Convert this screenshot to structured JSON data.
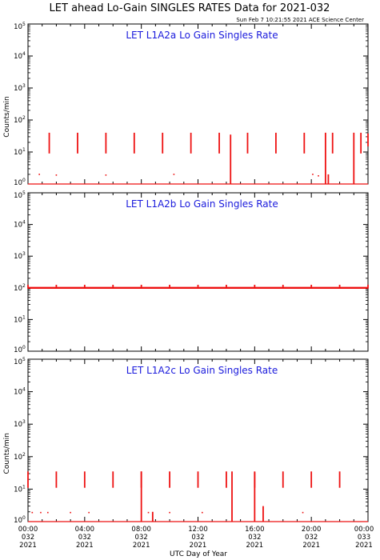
{
  "title": "LET ahead Lo-Gain SINGLES RATES Data for 2021-032",
  "timestamp": "Sun Feb  7 10:21:55 2021 ACE Science Center",
  "xlabel": "UTC Day of Year",
  "ylabel": "Counts/min",
  "colors": {
    "data": "#ee1111",
    "panel_title": "#1a1adc",
    "axes": "#000000"
  },
  "x_ticks": [
    {
      "time": "00:00",
      "doy": "032",
      "year": "2021"
    },
    {
      "time": "04:00",
      "doy": "032",
      "year": "2021"
    },
    {
      "time": "08:00",
      "doy": "032",
      "year": "2021"
    },
    {
      "time": "12:00",
      "doy": "032",
      "year": "2021"
    },
    {
      "time": "16:00",
      "doy": "032",
      "year": "2021"
    },
    {
      "time": "20:00",
      "doy": "032",
      "year": "2021"
    },
    {
      "time": "00:00",
      "doy": "033",
      "year": "2021"
    }
  ],
  "y_ticks": [
    {
      "base": "10",
      "exp": "0"
    },
    {
      "base": "10",
      "exp": "1"
    },
    {
      "base": "10",
      "exp": "2"
    },
    {
      "base": "10",
      "exp": "3"
    },
    {
      "base": "10",
      "exp": "4"
    },
    {
      "base": "10",
      "exp": "5"
    }
  ],
  "chart_data": [
    {
      "type": "line",
      "title": "LET L1A2a Lo Gain Singles Rate",
      "x_units": "UTC hour of day 032",
      "xlim": [
        0,
        24
      ],
      "ylim": [
        1,
        100000
      ],
      "y_scale": "log",
      "baseline": 1,
      "periodic_spikes": {
        "start_hour": 1.5,
        "period_hours": 2.0,
        "count": 12,
        "low": 9,
        "high": 40
      },
      "extra_spikes": [
        {
          "x": 14.3,
          "low": 1,
          "high": 35
        },
        {
          "x": 21.0,
          "low": 1,
          "high": 40
        },
        {
          "x": 21.2,
          "low": 1,
          "high": 2
        },
        {
          "x": 23.0,
          "low": 1,
          "high": 40
        },
        {
          "x": 24.0,
          "low": 15,
          "high": 38
        }
      ],
      "sparse_points": [
        {
          "x": 0.8,
          "y": 2
        },
        {
          "x": 2.0,
          "y": 1.9
        },
        {
          "x": 5.5,
          "y": 1.9
        },
        {
          "x": 10.3,
          "y": 2
        },
        {
          "x": 20.1,
          "y": 2
        },
        {
          "x": 20.5,
          "y": 1.8
        }
      ]
    },
    {
      "type": "line",
      "title": "LET L1A2b Lo Gain Singles Rate",
      "x_units": "UTC hour of day 032",
      "xlim": [
        0,
        24
      ],
      "ylim": [
        1,
        100000
      ],
      "y_scale": "log",
      "baseline": 100,
      "periodic_spikes": {
        "start_hour": 0.0,
        "period_hours": 2.0,
        "count": 13,
        "low": 95,
        "high": 125
      },
      "extra_spikes": [],
      "sparse_points": []
    },
    {
      "type": "line",
      "title": "LET L1A2c Lo Gain Singles Rate",
      "x_units": "UTC hour of day 032",
      "xlim": [
        0,
        24
      ],
      "ylim": [
        1,
        100000
      ],
      "y_scale": "log",
      "baseline": 1,
      "periodic_spikes": {
        "start_hour": 0.0,
        "period_hours": 2.0,
        "count": 12,
        "low": 11,
        "high": 35
      },
      "extra_spikes": [
        {
          "x": 8.0,
          "low": 1,
          "high": 35
        },
        {
          "x": 8.8,
          "low": 1,
          "high": 2
        },
        {
          "x": 14.4,
          "low": 1,
          "high": 35
        },
        {
          "x": 16.0,
          "low": 1,
          "high": 33
        },
        {
          "x": 16.6,
          "low": 1,
          "high": 3
        }
      ],
      "sparse_points": [
        {
          "x": 0.3,
          "y": 1.9
        },
        {
          "x": 0.9,
          "y": 1.9
        },
        {
          "x": 1.4,
          "y": 1.9
        },
        {
          "x": 3.0,
          "y": 1.9
        },
        {
          "x": 4.3,
          "y": 1.9
        },
        {
          "x": 8.5,
          "y": 1.9
        },
        {
          "x": 10.0,
          "y": 1.9
        },
        {
          "x": 12.3,
          "y": 1.9
        },
        {
          "x": 19.4,
          "y": 1.9
        }
      ]
    }
  ]
}
